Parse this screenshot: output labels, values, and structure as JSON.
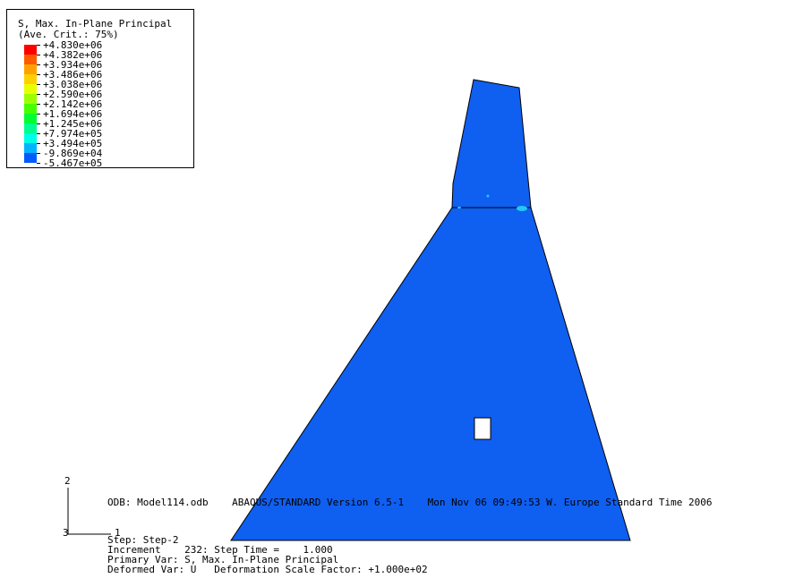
{
  "legend": {
    "title_line1": "S, Max. In-Plane Principal",
    "title_line2": "(Ave. Crit.: 75%)",
    "entries": [
      {
        "value": "+4.830e+06",
        "color": "#ff0000"
      },
      {
        "value": "+4.382e+06",
        "color": "#ff5a00"
      },
      {
        "value": "+3.934e+06",
        "color": "#ffa200"
      },
      {
        "value": "+3.486e+06",
        "color": "#ffd000"
      },
      {
        "value": "+3.038e+06",
        "color": "#e8ff00"
      },
      {
        "value": "+2.590e+06",
        "color": "#9cff00"
      },
      {
        "value": "+2.142e+06",
        "color": "#46ff00"
      },
      {
        "value": "+1.694e+06",
        "color": "#00ff30"
      },
      {
        "value": "+1.245e+06",
        "color": "#00ff90"
      },
      {
        "value": "+7.974e+05",
        "color": "#00ffe6"
      },
      {
        "value": "+3.494e+05",
        "color": "#00b4ff"
      },
      {
        "value": "-9.869e+04",
        "color": "#005aff"
      },
      {
        "value": "-5.467e+05",
        "color": "#0000ff"
      }
    ]
  },
  "model": {
    "fill_color": "#0f5ff0",
    "highlight_color": "#21c8f5"
  },
  "axes": {
    "axis_2_label": "2",
    "axis_3_label": "3",
    "axis_1_label": "1"
  },
  "info": {
    "odb_line": "ODB: Model114.odb    ABAQUS/STANDARD Version 6.5-1    Mon Nov 06 09:49:53 W. Europe Standard Time 2006",
    "step_line": "Step: Step-2",
    "increment_line": "Increment    232: Step Time =    1.000",
    "primary_var_line": "Primary Var: S, Max. In-Plane Principal",
    "deformed_var_line": "Deformed Var: U   Deformation Scale Factor: +1.000e+02"
  }
}
